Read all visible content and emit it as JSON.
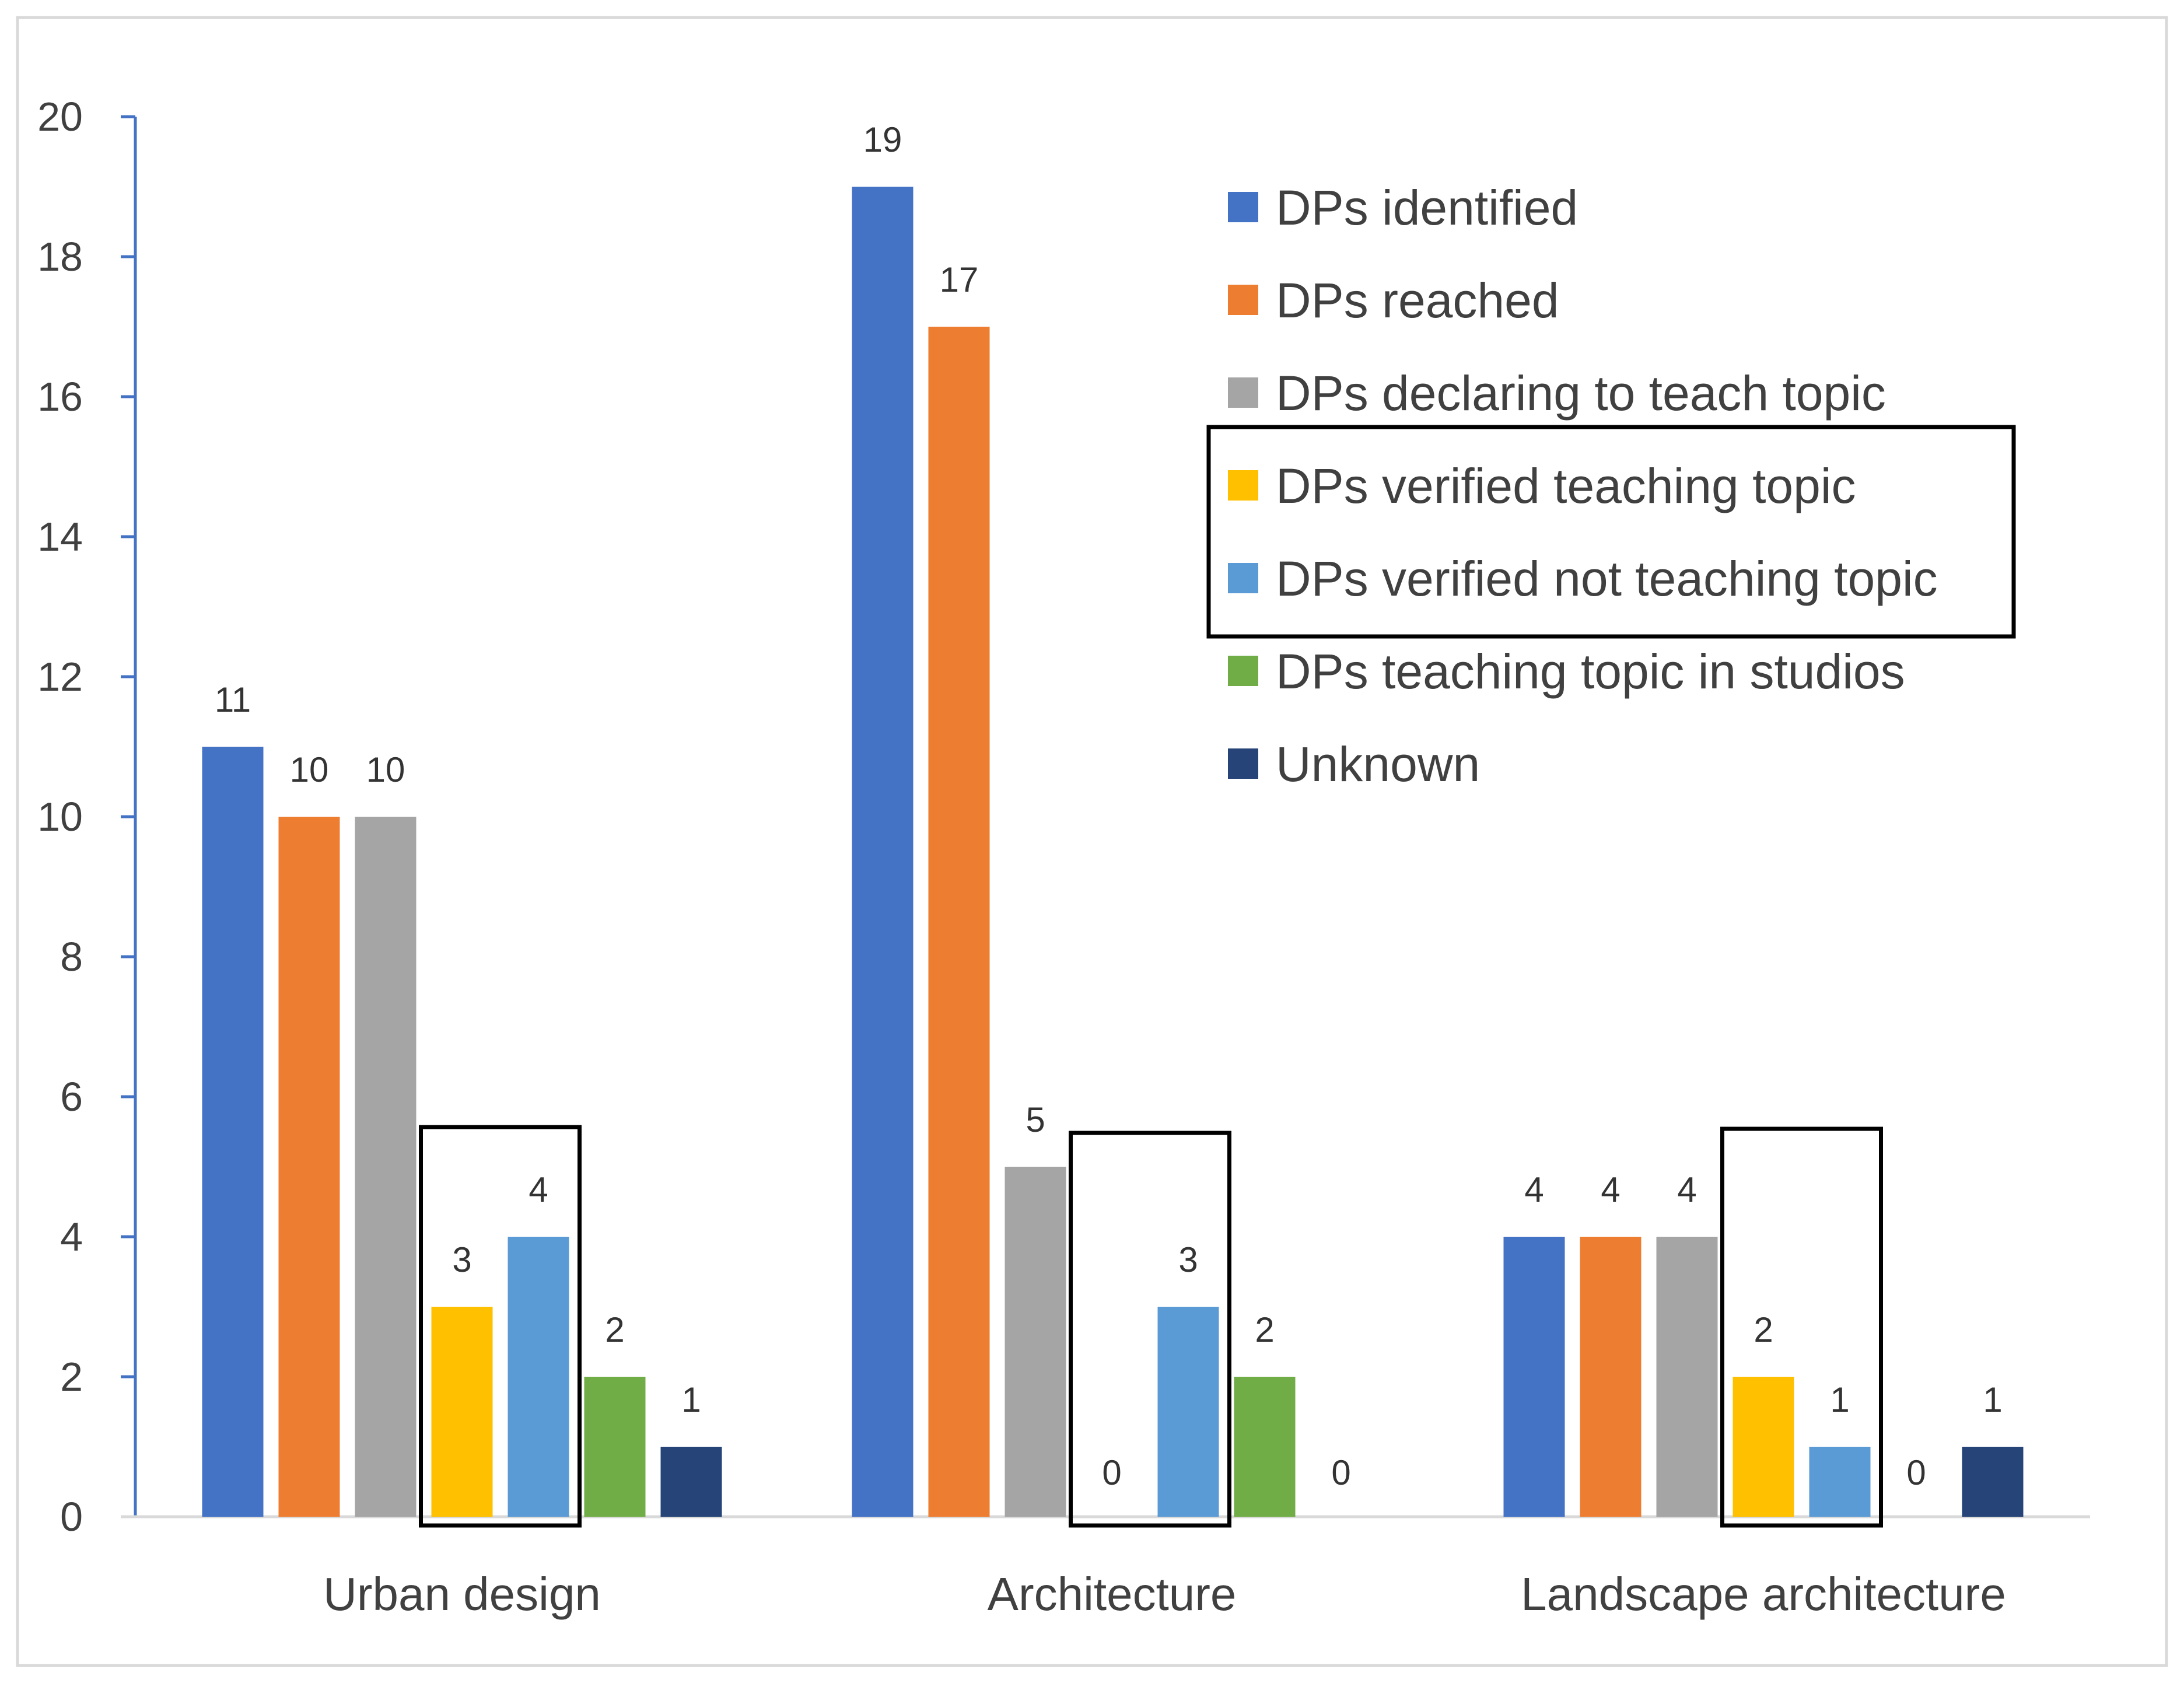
{
  "chart_data": {
    "type": "bar",
    "categories": [
      "Urban design",
      "Architecture",
      "Landscape architecture"
    ],
    "series": [
      {
        "name": "DPs identified",
        "color": "#4472C4",
        "values": [
          11,
          19,
          4
        ]
      },
      {
        "name": "DPs reached",
        "color": "#ED7D31",
        "values": [
          10,
          17,
          4
        ]
      },
      {
        "name": "DPs declaring to teach topic",
        "color": "#A5A5A5",
        "values": [
          10,
          5,
          4
        ]
      },
      {
        "name": "DPs verified teaching topic",
        "color": "#FFC000",
        "values": [
          3,
          0,
          2
        ]
      },
      {
        "name": "DPs verified not teaching topic",
        "color": "#5B9BD5",
        "values": [
          4,
          3,
          1
        ]
      },
      {
        "name": "DPs teaching topic in studios",
        "color": "#70AD47",
        "values": [
          2,
          2,
          0
        ]
      },
      {
        "name": "Unknown",
        "color": "#264478",
        "values": [
          1,
          0,
          1
        ]
      }
    ],
    "ylim": [
      0,
      20
    ],
    "yticks": [
      0,
      2,
      4,
      6,
      8,
      10,
      12,
      14,
      16,
      18,
      20
    ],
    "xlabel": "",
    "ylabel": "",
    "title": "",
    "legend_position": "top-right",
    "highlighted_series": [
      "DPs verified teaching topic",
      "DPs verified not teaching topic"
    ],
    "grid": false
  }
}
